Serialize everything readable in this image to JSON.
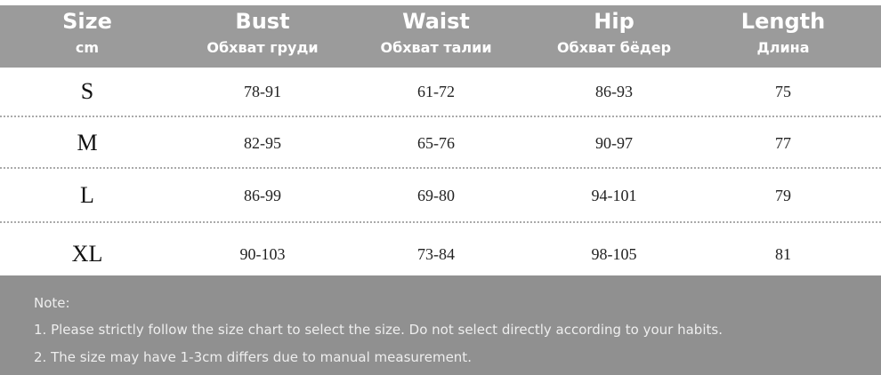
{
  "header": [
    {
      "title": "Size",
      "subtitle": "cm"
    },
    {
      "title": "Bust",
      "subtitle": "Обхват груди"
    },
    {
      "title": "Waist",
      "subtitle": "Обхват талии"
    },
    {
      "title": "Hip",
      "subtitle": "Обхват бёдер"
    },
    {
      "title": "Length",
      "subtitle": "Длина"
    }
  ],
  "table": {
    "rows": [
      [
        "S",
        "78-91",
        "61-72",
        "86-93",
        75
      ],
      [
        "M",
        "82-95",
        "65-76",
        "90-97",
        77
      ],
      [
        "L",
        "86-99",
        "69-80",
        "94-101",
        79
      ],
      [
        "XL",
        "90-103",
        "73-84",
        "98-105",
        81
      ]
    ]
  },
  "note": {
    "title": "Note:",
    "lines": [
      "1. Please strictly follow the size chart to select the size. Do not select directly according to your habits.",
      "2. The size may have 1-3cm differs due to manual measurement."
    ]
  }
}
